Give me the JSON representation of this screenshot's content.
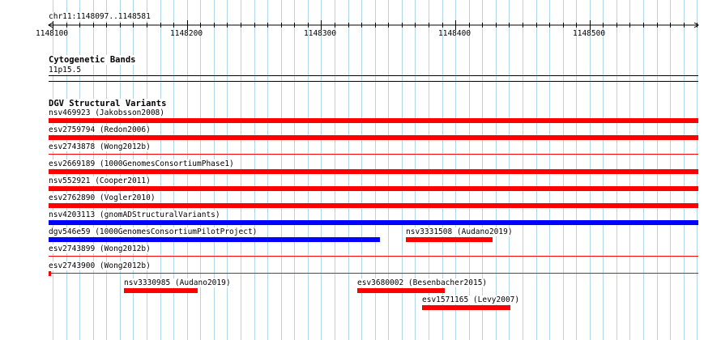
{
  "location": "chr11:1148097..1148581",
  "ruler": {
    "start": 1148097,
    "end": 1148581,
    "major_ticks": [
      "1148100",
      "1148200",
      "1148300",
      "1148400",
      "1148500"
    ]
  },
  "tracks": [
    {
      "title": "Cytogenetic Bands",
      "features": [
        {
          "label": "11p15.5"
        }
      ]
    },
    {
      "title": "DGV Structural Variants",
      "features": [
        {
          "label": "nsv469923 (Jakobsson2008)",
          "color": "#ff0000",
          "style": "thick",
          "start": 1148097,
          "end": 1148581
        },
        {
          "label": "esv2759794 (Redon2006)",
          "color": "#ff0000",
          "style": "thick",
          "start": 1148097,
          "end": 1148581
        },
        {
          "label": "esv2743878 (Wong2012b)",
          "color": "#ff0000",
          "style": "thin",
          "start": 1148097,
          "end": 1148581
        },
        {
          "label": "esv2669189 (1000GenomesConsortiumPhase1)",
          "color": "#ff0000",
          "style": "thick",
          "start": 1148097,
          "end": 1148581
        },
        {
          "label": "nsv552921 (Cooper2011)",
          "color": "#ff0000",
          "style": "thick",
          "start": 1148097,
          "end": 1148581
        },
        {
          "label": "esv2762890 (Vogler2010)",
          "color": "#ff0000",
          "style": "thick",
          "start": 1148097,
          "end": 1148581
        },
        {
          "label": "nsv4203113 (gnomADStructuralVariants)",
          "color": "#0000ff",
          "style": "thick",
          "start": 1148097,
          "end": 1148581
        },
        {
          "label": "dgv546e59 (1000GenomesConsortiumPilotProject)",
          "color": "#0000ff",
          "style": "thick",
          "start": 1148097,
          "end": 1148344
        },
        {
          "label": "nsv3331508 (Audano2019)",
          "color": "#ff0000",
          "style": "thick",
          "start": 1148363,
          "end": 1148428
        },
        {
          "label": "esv2743899 (Wong2012b)",
          "color": "#ff0000",
          "style": "thin",
          "start": 1148097,
          "end": 1148581
        },
        {
          "label": "esv2743900 (Wong2012b)",
          "color": "#ff0000",
          "style": "thin",
          "start": 1148097,
          "end": 1148581
        },
        {
          "label": "nsv3330985 (Audano2019)",
          "color": "#ff0000",
          "style": "thick",
          "start": 1148153,
          "end": 1148208
        },
        {
          "label": "esv3680002 (Besenbacher2015)",
          "color": "#ff0000",
          "style": "thick",
          "start": 1148327,
          "end": 1148392
        },
        {
          "label": "esv1571165 (Levy2007)",
          "color": "#ff0000",
          "style": "thick",
          "start": 1148375,
          "end": 1148441
        }
      ]
    }
  ]
}
